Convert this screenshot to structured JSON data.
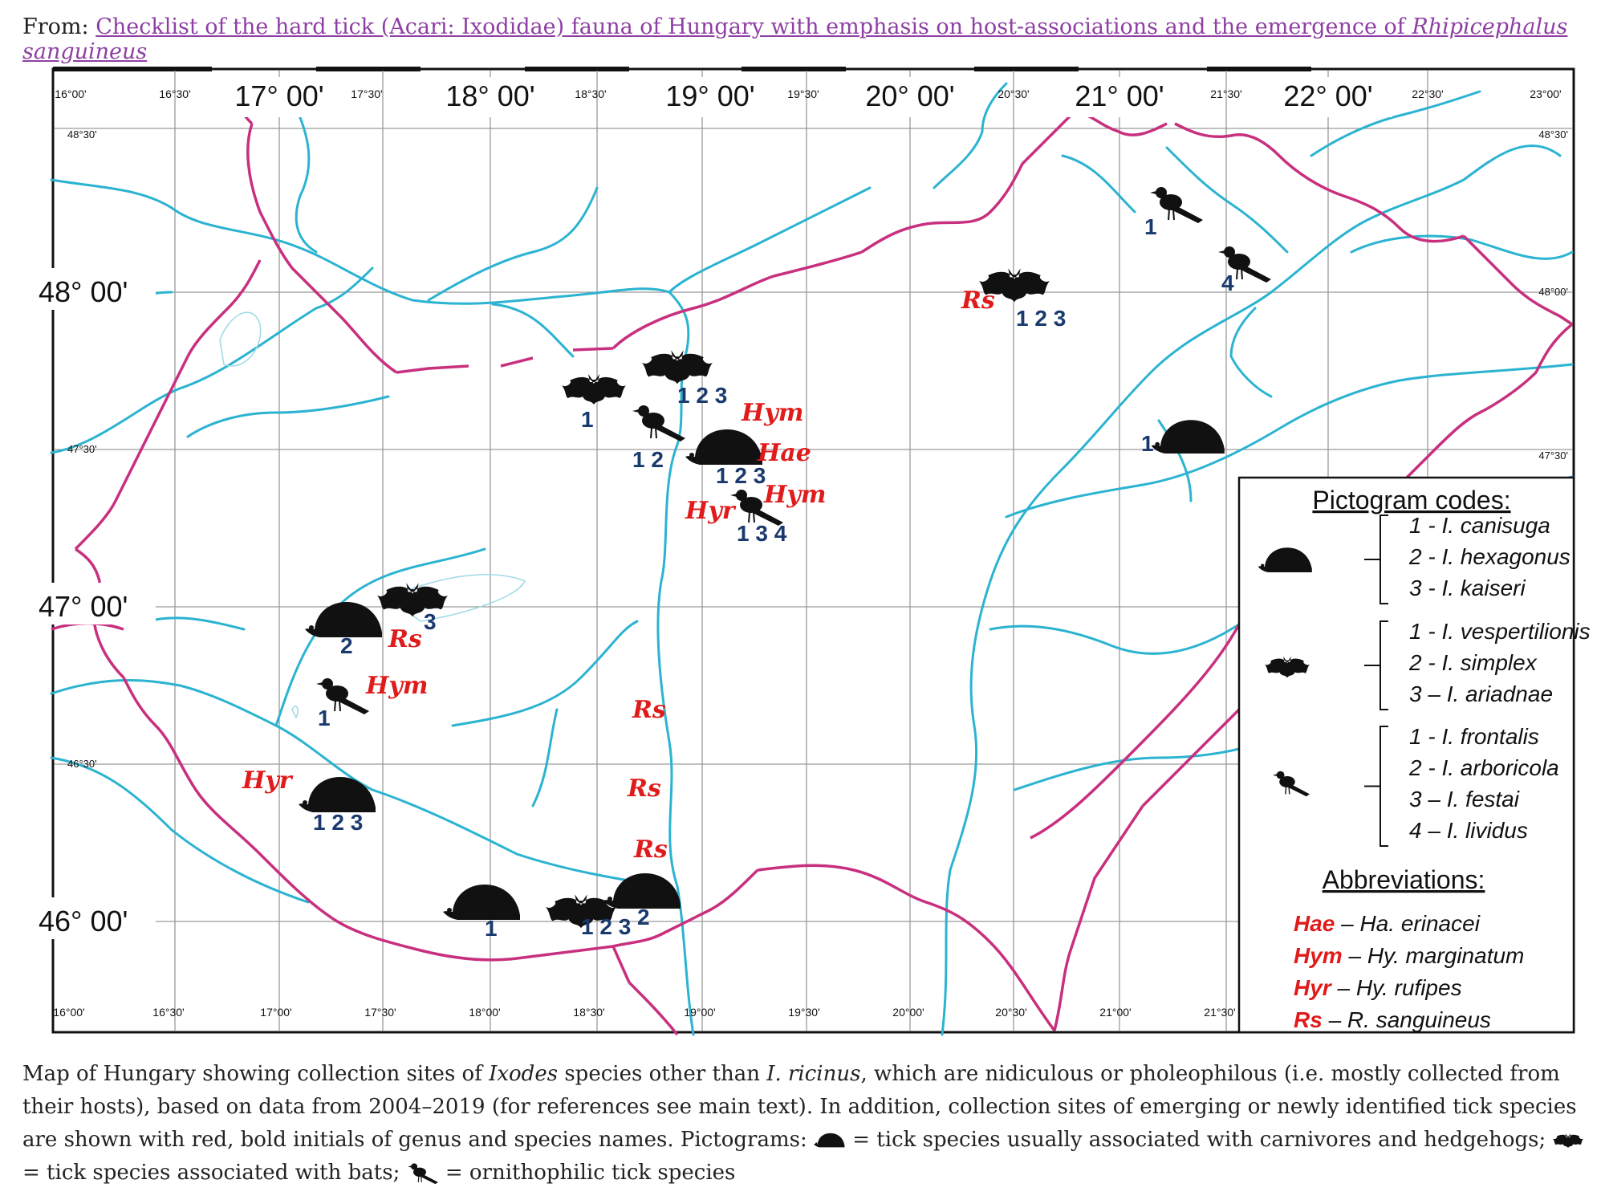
{
  "header": {
    "from_label": "From:",
    "link_text": "Checklist of the hard tick (Acari: Ixodidae) fauna of Hungary with emphasis on host-associations and the emergence of ",
    "link_italic": "Rhipicephalus sanguineus"
  },
  "map": {
    "top_longitudes": [
      "16°00'",
      "16°30'",
      "17° 00'",
      "17°30'",
      "18° 00'",
      "18°30'",
      "19° 00'",
      "19°30'",
      "20° 00'",
      "20°30'",
      "21° 00'",
      "21°30'",
      "22° 00'",
      "22°30'",
      "23°00'"
    ],
    "bottom_longitudes": [
      "16°00'",
      "16°30'",
      "17°00'",
      "17°30'",
      "18°00'",
      "18°30'",
      "19°00'",
      "19°30'",
      "20°00'",
      "20°30'",
      "21°00'",
      "21°30'"
    ],
    "left_latitudes_major": [
      "48° 00'",
      "47° 00'",
      "46° 00'"
    ],
    "left_latitudes_minor": [
      "48°30'",
      "47°30'",
      "46°30'"
    ],
    "right_latitudes": [
      "48°30'",
      "48°00'",
      "47°30'"
    ],
    "colors": {
      "river": "#2bb3d1",
      "border": "#c8307f",
      "grid": "#9a9a9a",
      "frame": "#111111",
      "abbr_red": "#e01b1b",
      "code_blue": "#1a3a6e",
      "silhouette": "#111111"
    },
    "markers": [
      {
        "id": "bird-ne1",
        "icon": "bird",
        "numbers": "1"
      },
      {
        "id": "bird-ne2",
        "icon": "bird",
        "numbers": "4"
      },
      {
        "id": "bat-ne",
        "icon": "bat",
        "numbers": "1 2 3",
        "abbr": "Rs"
      },
      {
        "id": "hedgehog-e",
        "icon": "hedgehog",
        "numbers": "1"
      },
      {
        "id": "bat-bp1",
        "icon": "bat",
        "numbers": "1 2 3"
      },
      {
        "id": "bat-bp2",
        "icon": "bat",
        "numbers": "1"
      },
      {
        "id": "bird-bp",
        "icon": "bird",
        "numbers": "1 2"
      },
      {
        "id": "hedgehog-bp",
        "icon": "hedgehog",
        "numbers": "1 2 3",
        "abbr": [
          "Hym",
          "Hae"
        ]
      },
      {
        "id": "bird-bp2",
        "icon": "bird",
        "numbers": "1 3 4",
        "abbr": [
          "Hyr",
          "Hym"
        ]
      },
      {
        "id": "hedgehog-w1",
        "icon": "hedgehog",
        "numbers": "2"
      },
      {
        "id": "bat-w1",
        "icon": "bat",
        "numbers": "3",
        "abbr": "Rs"
      },
      {
        "id": "bird-w1",
        "icon": "bird",
        "numbers": "1",
        "abbr": "Hym"
      },
      {
        "id": "hedgehog-w2",
        "icon": "hedgehog",
        "numbers": "1 2 3",
        "abbr": "Hyr"
      },
      {
        "id": "rs-south1",
        "abbr": "Rs"
      },
      {
        "id": "rs-south2",
        "abbr": "Rs"
      },
      {
        "id": "rs-south3",
        "abbr": "Rs"
      },
      {
        "id": "hedgehog-s1",
        "icon": "hedgehog",
        "numbers": "1"
      },
      {
        "id": "bat-s",
        "icon": "bat",
        "numbers": "1 2 3"
      },
      {
        "id": "hedgehog-s2",
        "icon": "hedgehog",
        "numbers": "2"
      }
    ],
    "legend": {
      "title": "Pictogram codes:",
      "hedgehog_items": [
        "1 - I. canisuga",
        "2 - I. hexagonus",
        "3 - I. kaiseri"
      ],
      "bat_items": [
        "1 - I. vespertilionis",
        "2 - I. simplex",
        "3 – I. ariadnae"
      ],
      "bird_items": [
        "1 - I. frontalis",
        "2 - I. arboricola",
        "3 – I. festai",
        "4 – I. lividus"
      ],
      "abbr_title": "Abbreviations:",
      "abbreviations": [
        {
          "code": "Hae",
          "text": " – Ha. erinacei"
        },
        {
          "code": "Hym",
          "text": " – Hy. marginatum"
        },
        {
          "code": "Hyr",
          "text": " – Hy. rufipes"
        },
        {
          "code": "Rs",
          "text": " – R. sanguineus"
        }
      ]
    }
  },
  "caption": {
    "p1": "Map of Hungary showing collection sites of ",
    "p1_italic": "Ixodes",
    "p2": " species other than ",
    "p2_italic": "I. ricinus",
    "p3": ", which are nidiculous or pholeophilous (i.e. mostly collected from their hosts), based on data from 2004–2019 (for references see main text). In addition, collection sites of emerging or newly identified tick species are shown with red, bold initials of genus and species names. Pictograms: ",
    "p4": " = tick species usually associated with carnivores and hedgehogs; ",
    "p5": " = tick species associated with bats; ",
    "p6": " = ornithophilic tick species"
  }
}
